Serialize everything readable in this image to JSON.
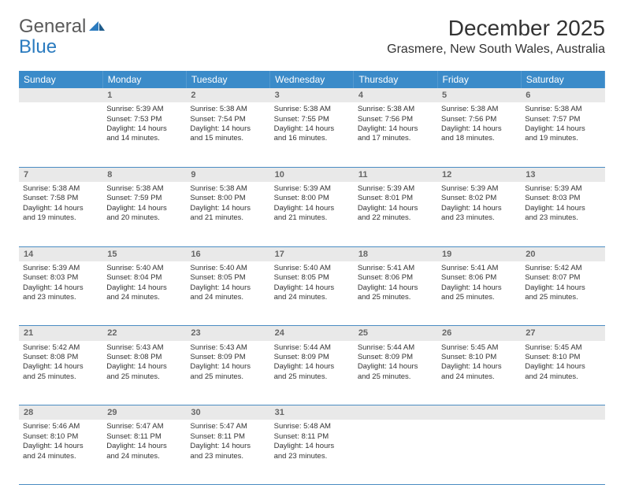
{
  "logo": {
    "text1": "General",
    "text2": "Blue"
  },
  "title": "December 2025",
  "location": "Grasmere, New South Wales, Australia",
  "dayHeaders": [
    "Sunday",
    "Monday",
    "Tuesday",
    "Wednesday",
    "Thursday",
    "Friday",
    "Saturday"
  ],
  "header_bg": "#3b8bc9",
  "daynum_bg": "#e9e9e9",
  "border_color": "#4a8cc2",
  "weeks": [
    [
      null,
      {
        "n": "1",
        "sr": "Sunrise: 5:39 AM",
        "ss": "Sunset: 7:53 PM",
        "d1": "Daylight: 14 hours",
        "d2": "and 14 minutes."
      },
      {
        "n": "2",
        "sr": "Sunrise: 5:38 AM",
        "ss": "Sunset: 7:54 PM",
        "d1": "Daylight: 14 hours",
        "d2": "and 15 minutes."
      },
      {
        "n": "3",
        "sr": "Sunrise: 5:38 AM",
        "ss": "Sunset: 7:55 PM",
        "d1": "Daylight: 14 hours",
        "d2": "and 16 minutes."
      },
      {
        "n": "4",
        "sr": "Sunrise: 5:38 AM",
        "ss": "Sunset: 7:56 PM",
        "d1": "Daylight: 14 hours",
        "d2": "and 17 minutes."
      },
      {
        "n": "5",
        "sr": "Sunrise: 5:38 AM",
        "ss": "Sunset: 7:56 PM",
        "d1": "Daylight: 14 hours",
        "d2": "and 18 minutes."
      },
      {
        "n": "6",
        "sr": "Sunrise: 5:38 AM",
        "ss": "Sunset: 7:57 PM",
        "d1": "Daylight: 14 hours",
        "d2": "and 19 minutes."
      }
    ],
    [
      {
        "n": "7",
        "sr": "Sunrise: 5:38 AM",
        "ss": "Sunset: 7:58 PM",
        "d1": "Daylight: 14 hours",
        "d2": "and 19 minutes."
      },
      {
        "n": "8",
        "sr": "Sunrise: 5:38 AM",
        "ss": "Sunset: 7:59 PM",
        "d1": "Daylight: 14 hours",
        "d2": "and 20 minutes."
      },
      {
        "n": "9",
        "sr": "Sunrise: 5:38 AM",
        "ss": "Sunset: 8:00 PM",
        "d1": "Daylight: 14 hours",
        "d2": "and 21 minutes."
      },
      {
        "n": "10",
        "sr": "Sunrise: 5:39 AM",
        "ss": "Sunset: 8:00 PM",
        "d1": "Daylight: 14 hours",
        "d2": "and 21 minutes."
      },
      {
        "n": "11",
        "sr": "Sunrise: 5:39 AM",
        "ss": "Sunset: 8:01 PM",
        "d1": "Daylight: 14 hours",
        "d2": "and 22 minutes."
      },
      {
        "n": "12",
        "sr": "Sunrise: 5:39 AM",
        "ss": "Sunset: 8:02 PM",
        "d1": "Daylight: 14 hours",
        "d2": "and 23 minutes."
      },
      {
        "n": "13",
        "sr": "Sunrise: 5:39 AM",
        "ss": "Sunset: 8:03 PM",
        "d1": "Daylight: 14 hours",
        "d2": "and 23 minutes."
      }
    ],
    [
      {
        "n": "14",
        "sr": "Sunrise: 5:39 AM",
        "ss": "Sunset: 8:03 PM",
        "d1": "Daylight: 14 hours",
        "d2": "and 23 minutes."
      },
      {
        "n": "15",
        "sr": "Sunrise: 5:40 AM",
        "ss": "Sunset: 8:04 PM",
        "d1": "Daylight: 14 hours",
        "d2": "and 24 minutes."
      },
      {
        "n": "16",
        "sr": "Sunrise: 5:40 AM",
        "ss": "Sunset: 8:05 PM",
        "d1": "Daylight: 14 hours",
        "d2": "and 24 minutes."
      },
      {
        "n": "17",
        "sr": "Sunrise: 5:40 AM",
        "ss": "Sunset: 8:05 PM",
        "d1": "Daylight: 14 hours",
        "d2": "and 24 minutes."
      },
      {
        "n": "18",
        "sr": "Sunrise: 5:41 AM",
        "ss": "Sunset: 8:06 PM",
        "d1": "Daylight: 14 hours",
        "d2": "and 25 minutes."
      },
      {
        "n": "19",
        "sr": "Sunrise: 5:41 AM",
        "ss": "Sunset: 8:06 PM",
        "d1": "Daylight: 14 hours",
        "d2": "and 25 minutes."
      },
      {
        "n": "20",
        "sr": "Sunrise: 5:42 AM",
        "ss": "Sunset: 8:07 PM",
        "d1": "Daylight: 14 hours",
        "d2": "and 25 minutes."
      }
    ],
    [
      {
        "n": "21",
        "sr": "Sunrise: 5:42 AM",
        "ss": "Sunset: 8:08 PM",
        "d1": "Daylight: 14 hours",
        "d2": "and 25 minutes."
      },
      {
        "n": "22",
        "sr": "Sunrise: 5:43 AM",
        "ss": "Sunset: 8:08 PM",
        "d1": "Daylight: 14 hours",
        "d2": "and 25 minutes."
      },
      {
        "n": "23",
        "sr": "Sunrise: 5:43 AM",
        "ss": "Sunset: 8:09 PM",
        "d1": "Daylight: 14 hours",
        "d2": "and 25 minutes."
      },
      {
        "n": "24",
        "sr": "Sunrise: 5:44 AM",
        "ss": "Sunset: 8:09 PM",
        "d1": "Daylight: 14 hours",
        "d2": "and 25 minutes."
      },
      {
        "n": "25",
        "sr": "Sunrise: 5:44 AM",
        "ss": "Sunset: 8:09 PM",
        "d1": "Daylight: 14 hours",
        "d2": "and 25 minutes."
      },
      {
        "n": "26",
        "sr": "Sunrise: 5:45 AM",
        "ss": "Sunset: 8:10 PM",
        "d1": "Daylight: 14 hours",
        "d2": "and 24 minutes."
      },
      {
        "n": "27",
        "sr": "Sunrise: 5:45 AM",
        "ss": "Sunset: 8:10 PM",
        "d1": "Daylight: 14 hours",
        "d2": "and 24 minutes."
      }
    ],
    [
      {
        "n": "28",
        "sr": "Sunrise: 5:46 AM",
        "ss": "Sunset: 8:10 PM",
        "d1": "Daylight: 14 hours",
        "d2": "and 24 minutes."
      },
      {
        "n": "29",
        "sr": "Sunrise: 5:47 AM",
        "ss": "Sunset: 8:11 PM",
        "d1": "Daylight: 14 hours",
        "d2": "and 24 minutes."
      },
      {
        "n": "30",
        "sr": "Sunrise: 5:47 AM",
        "ss": "Sunset: 8:11 PM",
        "d1": "Daylight: 14 hours",
        "d2": "and 23 minutes."
      },
      {
        "n": "31",
        "sr": "Sunrise: 5:48 AM",
        "ss": "Sunset: 8:11 PM",
        "d1": "Daylight: 14 hours",
        "d2": "and 23 minutes."
      },
      null,
      null,
      null
    ]
  ]
}
